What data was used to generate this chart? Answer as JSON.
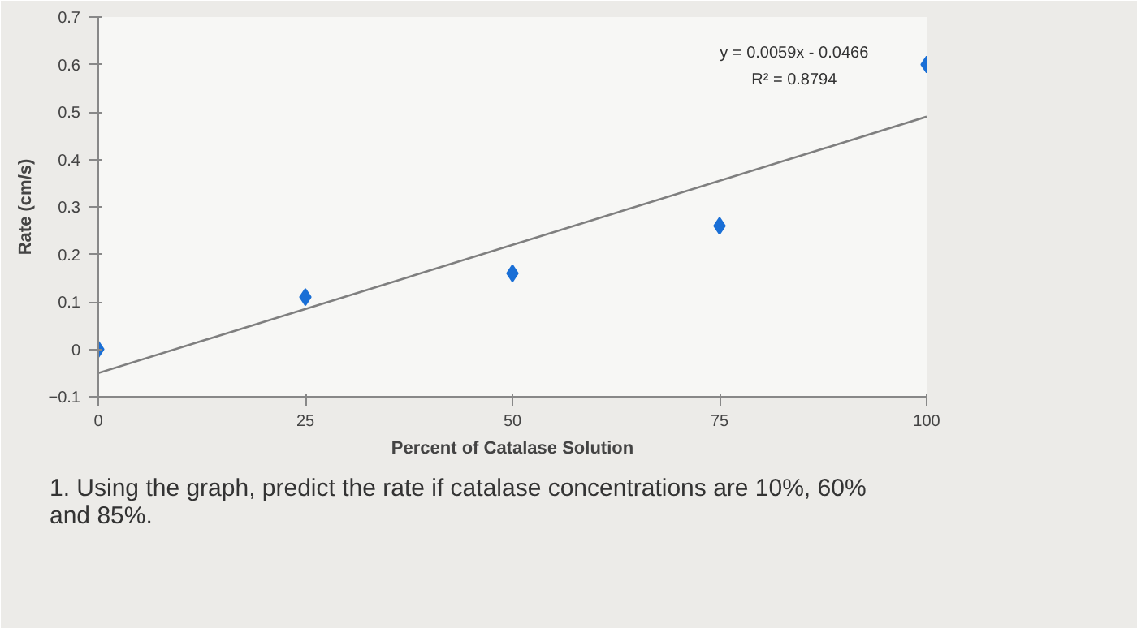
{
  "chart_data": {
    "type": "scatter",
    "xlabel": "Percent of Catalase Solution",
    "ylabel": "Rate (cm/s)",
    "x": [
      0,
      25,
      50,
      75,
      100
    ],
    "series": [
      {
        "color": "#1a6fd6",
        "values": [
          0,
          0.11,
          0.16,
          0.26,
          0.6
        ],
        "marker": "diamond"
      },
      {
        "type": "line",
        "color": "#7f7f7f",
        "x": [
          0,
          100
        ],
        "values": [
          -0.05,
          0.49
        ],
        "marker": "none",
        "line_style": "solid"
      }
    ],
    "xlim": [
      0,
      100
    ],
    "ylim": [
      -0.1,
      0.7
    ],
    "xticks": [
      0,
      25,
      50,
      75,
      100
    ],
    "yticks": [
      -0.1,
      0,
      0.1,
      0.2,
      0.3,
      0.4,
      0.5,
      0.6,
      0.7
    ],
    "grid": false,
    "annotations": [
      "y = 0.0059x - 0.0466",
      "R² = 0.8794",
      "1.  Using the graph, predict the rate if catalase concentrations are 10%, 60%\n     and 85%."
    ]
  }
}
